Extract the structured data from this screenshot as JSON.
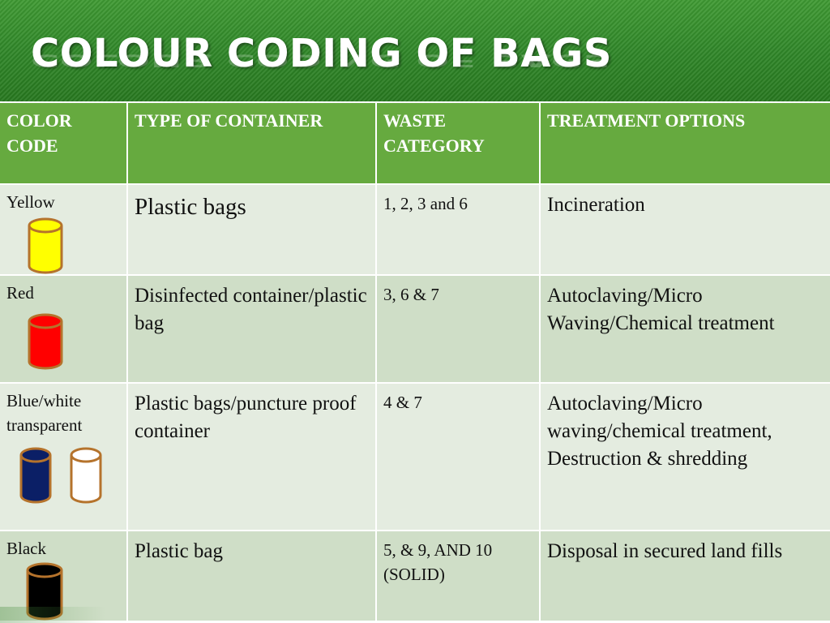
{
  "title": "COLOUR CODING OF BAGS",
  "table": {
    "headers": [
      "COLOR CODE",
      "TYPE OF CONTAINER",
      "WASTE CATEGORY",
      "TREATMENT OPTIONS"
    ],
    "rows": [
      {
        "color": "Yellow",
        "container": "Plastic bags",
        "category": "1, 2, 3 and 6",
        "treatment": "Incineration",
        "bins": [
          "#ffff00"
        ]
      },
      {
        "color": "Red",
        "container": "Disinfected container/plastic bag",
        "category": "3, 6 & 7",
        "treatment": "Autoclaving/Micro Waving/Chemical treatment",
        "bins": [
          "#ff0000"
        ]
      },
      {
        "color": "Blue/white transparent",
        "container": "Plastic bags/puncture proof container",
        "category": "4 & 7",
        "treatment": "Autoclaving/Micro waving/chemical treatment, Destruction & shredding",
        "bins": [
          "#0b1f66",
          "#ffffff"
        ]
      },
      {
        "color": "Black",
        "container": "Plastic bag",
        "category": "5, & 9, AND 10 (SOLID)",
        "treatment": "Disposal in secured land fills",
        "bins": [
          "#000000"
        ]
      }
    ]
  }
}
